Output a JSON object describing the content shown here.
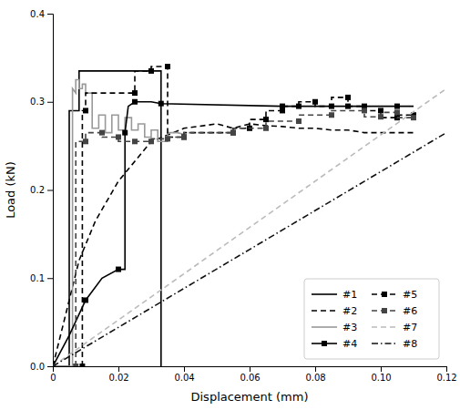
{
  "chart_data": {
    "type": "line",
    "xlabel": "Displacement (mm)",
    "ylabel": "Load (kN)",
    "xlim": [
      0,
      0.12
    ],
    "ylim": [
      0,
      0.4
    ],
    "xticks": [
      0,
      0.02,
      0.04,
      0.06,
      0.08,
      {
        "value": 0.1,
        "label": "0.10"
      },
      0.12
    ],
    "yticks": [
      {
        "value": 0,
        "label": "0.0"
      },
      0.1,
      0.2,
      0.3,
      0.4
    ],
    "grid": false,
    "legend": "lower right",
    "series": [
      {
        "name": "#1",
        "color": "#000000",
        "line_style": "solid",
        "x": [
          0,
          0.005,
          0.005,
          0.008,
          0.008,
          0.033,
          0.033
        ],
        "values": [
          0,
          0.0,
          0.29,
          0.29,
          0.335,
          0.335,
          0.0
        ]
      },
      {
        "name": "#2",
        "color": "#000000",
        "line_style": "dashed",
        "x": [
          0,
          0.004,
          0.008,
          0.013,
          0.02,
          0.03,
          0.04,
          0.05,
          0.055,
          0.06,
          0.065,
          0.07,
          0.075,
          0.08,
          0.085,
          0.09,
          0.095,
          0.1,
          0.105,
          0.11
        ],
        "values": [
          0,
          0.06,
          0.12,
          0.165,
          0.21,
          0.255,
          0.27,
          0.275,
          0.27,
          0.275,
          0.273,
          0.272,
          0.27,
          0.27,
          0.268,
          0.268,
          0.265,
          0.265,
          0.265,
          0.265
        ]
      },
      {
        "name": "#3",
        "color": "#999999",
        "line_style": "solid",
        "x": [
          0,
          0.006,
          0.006,
          0.007,
          0.007,
          0.008,
          0.008,
          0.009,
          0.009,
          0.01,
          0.01,
          0.012,
          0.012,
          0.014,
          0.014,
          0.016,
          0.016,
          0.018,
          0.018,
          0.02,
          0.02,
          0.022,
          0.022,
          0.024,
          0.024,
          0.026,
          0.026,
          0.028,
          0.028,
          0.03,
          0.03,
          0.032,
          0.032,
          0.035,
          0.035,
          0.038,
          0.04
        ],
        "values": [
          0,
          0,
          0.315,
          0.31,
          0.325,
          0.325,
          0.315,
          0.315,
          0.32,
          0.32,
          0.31,
          0.31,
          0.27,
          0.27,
          0.285,
          0.285,
          0.265,
          0.265,
          0.285,
          0.285,
          0.268,
          0.268,
          0.282,
          0.282,
          0.268,
          0.268,
          0.275,
          0.275,
          0.26,
          0.26,
          0.268,
          0.268,
          0.255,
          0.255,
          0.265,
          0.265,
          0.263
        ]
      },
      {
        "name": "#4",
        "color": "#000000",
        "line_style": "solid",
        "marker": "square",
        "x": [
          0,
          0.005,
          0.01,
          0.015,
          0.02,
          0.022,
          0.022,
          0.023,
          0.025,
          0.03,
          0.033,
          0.033,
          0.07,
          0.08,
          0.09,
          0.1,
          0.105,
          0.11
        ],
        "values": [
          0,
          0.035,
          0.075,
          0.1,
          0.11,
          0.11,
          0.265,
          0.295,
          0.3,
          0.3,
          0.298,
          0.298,
          0.295,
          0.295,
          0.295,
          0.295,
          0.295,
          0.295
        ]
      },
      {
        "name": "#5",
        "color": "#000000",
        "line_style": "dashed",
        "marker": "square",
        "x": [
          0.009,
          0.009,
          0.01,
          0.01,
          0.025,
          0.025,
          0.03,
          0.03,
          0.035,
          0.035,
          0.04,
          0.04,
          0.055,
          0.055,
          0.06,
          0.06,
          0.065,
          0.065,
          0.07,
          0.07,
          0.075,
          0.075,
          0.08,
          0.08,
          0.085,
          0.085,
          0.09,
          0.09,
          0.095,
          0.095,
          0.1,
          0.1,
          0.105,
          0.105,
          0.11
        ],
        "values": [
          0,
          0.29,
          0.29,
          0.31,
          0.31,
          0.335,
          0.335,
          0.34,
          0.34,
          0.26,
          0.26,
          0.265,
          0.265,
          0.27,
          0.27,
          0.28,
          0.28,
          0.29,
          0.29,
          0.295,
          0.295,
          0.3,
          0.3,
          0.295,
          0.295,
          0.305,
          0.305,
          0.295,
          0.295,
          0.29,
          0.29,
          0.282,
          0.282,
          0.285,
          0.285
        ]
      },
      {
        "name": "#6",
        "color": "#444444",
        "line_style": "dashed",
        "marker": "square",
        "x": [
          0.007,
          0.007,
          0.01,
          0.01,
          0.015,
          0.015,
          0.02,
          0.02,
          0.025,
          0.025,
          0.03,
          0.03,
          0.035,
          0.035,
          0.04,
          0.04,
          0.055,
          0.055,
          0.065,
          0.065,
          0.075,
          0.075,
          0.085,
          0.085,
          0.095,
          0.095,
          0.1,
          0.1,
          0.105,
          0.105,
          0.11
        ],
        "values": [
          0,
          0.255,
          0.255,
          0.265,
          0.265,
          0.26,
          0.26,
          0.255,
          0.255,
          0.255,
          0.255,
          0.258,
          0.258,
          0.26,
          0.26,
          0.265,
          0.265,
          0.27,
          0.27,
          0.278,
          0.278,
          0.285,
          0.285,
          0.29,
          0.29,
          0.283,
          0.283,
          0.288,
          0.288,
          0.282,
          0.282
        ]
      },
      {
        "name": "#7",
        "color": "#bbbbbb",
        "line_style": "dashed",
        "x": [
          0,
          0.12
        ],
        "values": [
          0,
          0.315
        ]
      },
      {
        "name": "#8",
        "color": "#111111",
        "line_style": "dashdot",
        "x": [
          0,
          0.12
        ],
        "values": [
          0,
          0.265
        ]
      }
    ]
  }
}
